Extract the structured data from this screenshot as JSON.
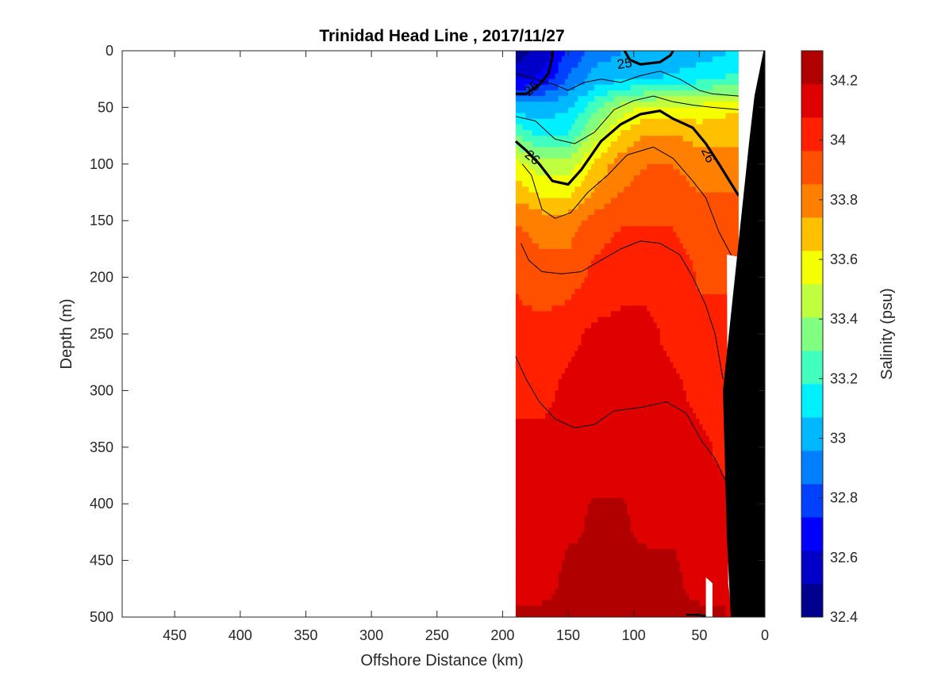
{
  "chart_data": {
    "type": "heatmap",
    "subtype": "filled-contour-section",
    "title": "Trinidad Head Line , 2017/11/27",
    "xlabel": "Offshore Distance (km)",
    "ylabel": "Depth (m)",
    "xlim": [
      490,
      0
    ],
    "x_reversed": true,
    "ylim": [
      500,
      0
    ],
    "y_reversed": true,
    "xticks": [
      "450",
      "400",
      "350",
      "300",
      "250",
      "200",
      "150",
      "100",
      "50",
      "0"
    ],
    "xtick_values": [
      450,
      400,
      350,
      300,
      250,
      200,
      150,
      100,
      50,
      0
    ],
    "yticks": [
      "0",
      "50",
      "100",
      "150",
      "200",
      "250",
      "300",
      "350",
      "400",
      "450",
      "500"
    ],
    "ytick_values": [
      0,
      50,
      100,
      150,
      200,
      250,
      300,
      350,
      400,
      450,
      500
    ],
    "colorbar": {
      "label": "Salinity (psu)",
      "range": [
        32.4,
        34.3
      ],
      "tick_labels": [
        "32.4",
        "32.6",
        "32.8",
        "33",
        "33.2",
        "33.4",
        "33.6",
        "33.8",
        "34",
        "34.2"
      ],
      "tick_values": [
        32.4,
        32.6,
        32.8,
        33.0,
        33.2,
        33.4,
        33.6,
        33.8,
        34.0,
        34.2
      ],
      "level_step": 0.1,
      "colors": [
        "#00008f",
        "#0000c8",
        "#0000ff",
        "#0040ff",
        "#0080ff",
        "#00b8ff",
        "#00f0ff",
        "#40ffbf",
        "#80ff80",
        "#bfff40",
        "#f5ff00",
        "#ffc000",
        "#ff8000",
        "#ff5000",
        "#ff2000",
        "#df0000",
        "#b00000"
      ]
    },
    "section_x_range_km": [
      190,
      20
    ],
    "depth_range_m": [
      0,
      500
    ],
    "distance_km": [
      190,
      170,
      150,
      130,
      110,
      90,
      70,
      50,
      30,
      20
    ],
    "depth_m": [
      0,
      25,
      50,
      75,
      100,
      125,
      150,
      200,
      250,
      300,
      350,
      400,
      450,
      500
    ],
    "salinity_psu": [
      [
        32.45,
        32.55,
        32.75,
        32.9,
        32.95,
        32.95,
        32.95,
        33.0,
        33.05,
        33.1
      ],
      [
        32.6,
        32.65,
        32.85,
        33.0,
        33.05,
        33.05,
        33.1,
        33.15,
        33.2,
        33.2
      ],
      [
        33.0,
        33.0,
        33.05,
        33.25,
        33.45,
        33.55,
        33.55,
        33.55,
        33.6,
        33.6
      ],
      [
        33.3,
        33.15,
        33.2,
        33.45,
        33.65,
        33.75,
        33.75,
        33.7,
        33.7,
        33.7
      ],
      [
        33.55,
        33.45,
        33.45,
        33.65,
        33.8,
        33.85,
        33.85,
        33.8,
        33.8,
        33.8
      ],
      [
        33.7,
        33.6,
        33.6,
        33.75,
        33.85,
        33.9,
        33.9,
        33.85,
        33.85,
        33.85
      ],
      [
        33.85,
        33.8,
        33.8,
        33.9,
        33.95,
        33.95,
        33.95,
        33.9,
        33.9,
        33.9
      ],
      [
        33.95,
        33.9,
        33.9,
        34.0,
        34.05,
        34.05,
        34.05,
        33.95,
        33.95,
        null
      ],
      [
        34.0,
        34.0,
        34.05,
        34.1,
        34.1,
        34.1,
        34.05,
        34.0,
        34.0,
        null
      ],
      [
        34.05,
        34.05,
        34.1,
        34.1,
        34.1,
        34.1,
        34.1,
        34.05,
        34.05,
        null
      ],
      [
        34.1,
        34.1,
        34.1,
        34.1,
        34.1,
        34.1,
        34.1,
        34.1,
        34.05,
        null
      ],
      [
        34.1,
        34.1,
        34.15,
        34.2,
        34.2,
        34.15,
        34.15,
        34.1,
        34.1,
        null
      ],
      [
        34.15,
        34.15,
        34.2,
        34.2,
        34.2,
        34.2,
        34.2,
        34.15,
        null,
        null
      ],
      [
        34.2,
        34.2,
        34.2,
        34.2,
        34.2,
        34.2,
        34.2,
        34.2,
        null,
        null
      ]
    ],
    "density_contour_labels": [
      {
        "text": "25",
        "x_km": 178,
        "depth_m": 33,
        "angle": -40
      },
      {
        "text": "25",
        "x_km": 107,
        "depth_m": 11,
        "angle": -8
      },
      {
        "text": "26",
        "x_km": 177,
        "depth_m": 94,
        "angle": 40
      },
      {
        "text": "26",
        "x_km": 43,
        "depth_m": 92,
        "angle": 65
      }
    ],
    "grid": false,
    "bathymetry_fill": "#000000"
  }
}
